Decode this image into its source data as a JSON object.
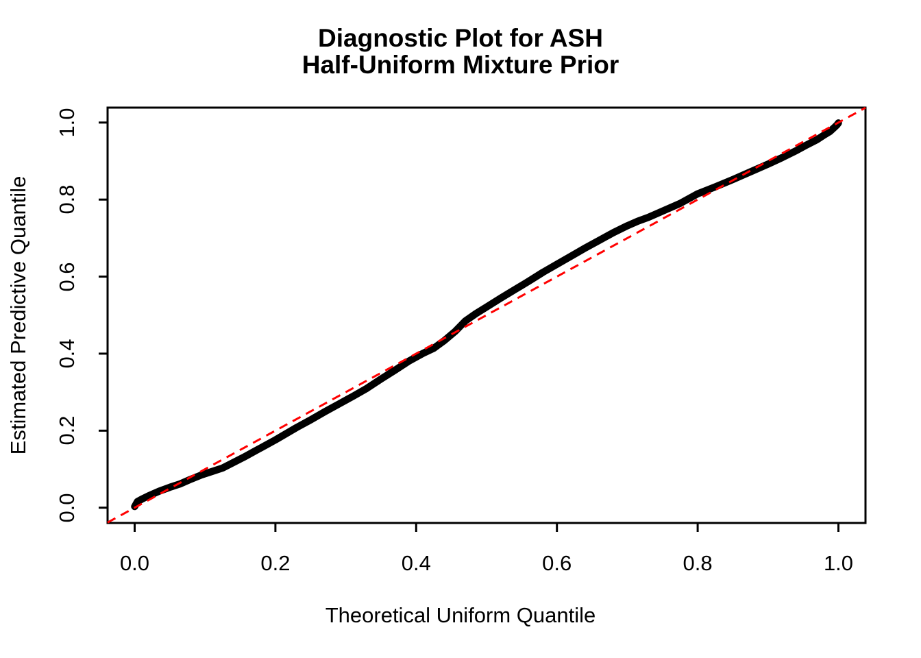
{
  "title": {
    "line1": "Diagnostic Plot for ASH",
    "line2": "Half-Uniform Mixture Prior"
  },
  "colors": {
    "curve": "#000000",
    "reference_line": "#FF0000",
    "background": "#FFFFFF",
    "text": "#000000"
  },
  "chart_data": {
    "type": "line",
    "title": "Diagnostic Plot for ASH Half-Uniform Mixture Prior",
    "xlabel": "Theoretical Uniform Quantile",
    "ylabel": "Estimated Predictive Quantile",
    "xlim": [
      -0.0385,
      1.0385
    ],
    "ylim": [
      -0.0385,
      1.0385
    ],
    "grid": false,
    "legend": false,
    "x_ticks": [
      0.0,
      0.2,
      0.4,
      0.6,
      0.8,
      1.0
    ],
    "x_tick_labels": [
      "0.0",
      "0.2",
      "0.4",
      "0.6",
      "0.8",
      "1.0"
    ],
    "y_ticks": [
      0.0,
      0.2,
      0.4,
      0.6,
      0.8,
      1.0
    ],
    "y_tick_labels": [
      "0.0",
      "0.2",
      "0.4",
      "0.6",
      "0.8",
      "1.0"
    ],
    "series": [
      {
        "name": "estimated-predictive-quantile-curve",
        "style": "thick-solid-line",
        "color": "#000000",
        "points": [
          [
            0.0,
            0.003
          ],
          [
            0.004,
            0.016
          ],
          [
            0.01,
            0.022
          ],
          [
            0.02,
            0.031
          ],
          [
            0.035,
            0.043
          ],
          [
            0.05,
            0.053
          ],
          [
            0.065,
            0.062
          ],
          [
            0.08,
            0.074
          ],
          [
            0.095,
            0.085
          ],
          [
            0.11,
            0.094
          ],
          [
            0.125,
            0.103
          ],
          [
            0.14,
            0.117
          ],
          [
            0.155,
            0.131
          ],
          [
            0.17,
            0.146
          ],
          [
            0.185,
            0.161
          ],
          [
            0.2,
            0.176
          ],
          [
            0.215,
            0.192
          ],
          [
            0.23,
            0.208
          ],
          [
            0.25,
            0.228
          ],
          [
            0.27,
            0.249
          ],
          [
            0.29,
            0.269
          ],
          [
            0.31,
            0.289
          ],
          [
            0.33,
            0.31
          ],
          [
            0.35,
            0.334
          ],
          [
            0.37,
            0.357
          ],
          [
            0.39,
            0.381
          ],
          [
            0.41,
            0.401
          ],
          [
            0.425,
            0.414
          ],
          [
            0.44,
            0.434
          ],
          [
            0.455,
            0.457
          ],
          [
            0.47,
            0.485
          ],
          [
            0.485,
            0.504
          ],
          [
            0.5,
            0.521
          ],
          [
            0.52,
            0.544
          ],
          [
            0.54,
            0.566
          ],
          [
            0.56,
            0.588
          ],
          [
            0.58,
            0.611
          ],
          [
            0.6,
            0.632
          ],
          [
            0.62,
            0.653
          ],
          [
            0.64,
            0.674
          ],
          [
            0.66,
            0.694
          ],
          [
            0.68,
            0.714
          ],
          [
            0.7,
            0.732
          ],
          [
            0.715,
            0.744
          ],
          [
            0.73,
            0.754
          ],
          [
            0.75,
            0.77
          ],
          [
            0.775,
            0.79
          ],
          [
            0.8,
            0.815
          ],
          [
            0.825,
            0.833
          ],
          [
            0.85,
            0.852
          ],
          [
            0.875,
            0.872
          ],
          [
            0.9,
            0.892
          ],
          [
            0.92,
            0.909
          ],
          [
            0.94,
            0.927
          ],
          [
            0.955,
            0.942
          ],
          [
            0.97,
            0.956
          ],
          [
            0.98,
            0.968
          ],
          [
            0.988,
            0.977
          ],
          [
            0.994,
            0.987
          ],
          [
            0.998,
            0.994
          ],
          [
            1.0,
            0.999
          ]
        ]
      },
      {
        "name": "reference-diagonal",
        "style": "dashed-line",
        "color": "#FF0000",
        "points": [
          [
            -0.0385,
            -0.0385
          ],
          [
            1.0385,
            1.0385
          ]
        ]
      }
    ]
  }
}
